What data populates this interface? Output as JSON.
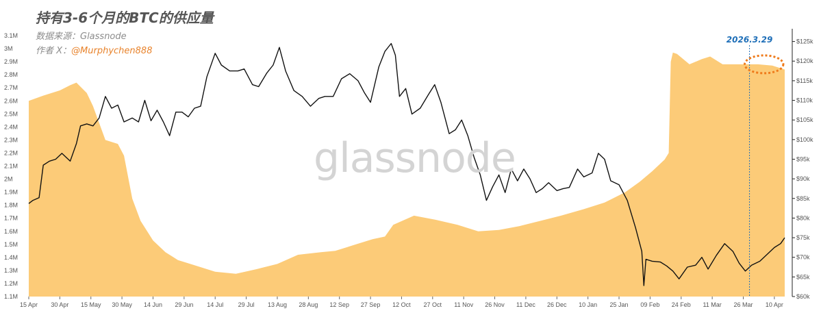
{
  "header": {
    "title": "持有3-6个月的BTC的供应量",
    "source": "数据来源：Glassnode",
    "author_prefix": "作者 X：",
    "author_handle": "@Murphychen888"
  },
  "watermark": "glassnode",
  "colors": {
    "supply_fill": "#fccb78",
    "price_line": "#111111",
    "annotation": "#1f6fb8",
    "highlight": "#ef7a1a"
  },
  "chart_data": {
    "type": "area",
    "x_start": "2025-04-15",
    "x_end": "2026-04-15",
    "x_tick_labels": [
      "15 Apr",
      "30 Apr",
      "15 May",
      "30 May",
      "14 Jun",
      "29 Jun",
      "14 Jul",
      "29 Jul",
      "13 Aug",
      "28 Aug",
      "12 Sep",
      "27 Sep",
      "12 Oct",
      "27 Oct",
      "11 Nov",
      "26 Nov",
      "11 Dec",
      "26 Dec",
      "10 Jan",
      "25 Jan",
      "09 Feb",
      "24 Feb",
      "11 Mar",
      "26 Mar",
      "10 Apr"
    ],
    "y_left_ticks": [
      "1.1M",
      "1.2M",
      "1.3M",
      "1.4M",
      "1.5M",
      "1.6M",
      "1.7M",
      "1.8M",
      "1.9M",
      "2M",
      "2.1M",
      "2.2M",
      "2.3M",
      "2.4M",
      "2.5M",
      "2.6M",
      "2.7M",
      "2.8M",
      "2.9M",
      "3M",
      "3.1M"
    ],
    "y_left_range": [
      1100000,
      3100000
    ],
    "y_right_ticks": [
      "$60k",
      "$65k",
      "$70k",
      "$75k",
      "$80k",
      "$85k",
      "$90k",
      "$95k",
      "$100k",
      "$105k",
      "$110k",
      "$115k",
      "$120k",
      "$125k"
    ],
    "y_right_range": [
      60000,
      126500
    ],
    "series": [
      {
        "type": "area",
        "axis": "left",
        "points": [
          [
            "2025-04-15",
            2600000
          ],
          [
            "2025-04-22",
            2640000
          ],
          [
            "2025-04-30",
            2680000
          ],
          [
            "2025-05-05",
            2720000
          ],
          [
            "2025-05-08",
            2740000
          ],
          [
            "2025-05-13",
            2660000
          ],
          [
            "2025-05-16",
            2560000
          ],
          [
            "2025-05-22",
            2300000
          ],
          [
            "2025-05-28",
            2270000
          ],
          [
            "2025-05-31",
            2180000
          ],
          [
            "2025-06-04",
            1850000
          ],
          [
            "2025-06-08",
            1680000
          ],
          [
            "2025-06-14",
            1530000
          ],
          [
            "2025-06-20",
            1440000
          ],
          [
            "2025-06-26",
            1380000
          ],
          [
            "2025-07-04",
            1340000
          ],
          [
            "2025-07-14",
            1290000
          ],
          [
            "2025-07-24",
            1275000
          ],
          [
            "2025-08-03",
            1310000
          ],
          [
            "2025-08-13",
            1350000
          ],
          [
            "2025-08-23",
            1420000
          ],
          [
            "2025-09-03",
            1440000
          ],
          [
            "2025-09-10",
            1450000
          ],
          [
            "2025-09-20",
            1500000
          ],
          [
            "2025-09-28",
            1540000
          ],
          [
            "2025-10-04",
            1560000
          ],
          [
            "2025-10-08",
            1650000
          ],
          [
            "2025-10-18",
            1720000
          ],
          [
            "2025-10-28",
            1690000
          ],
          [
            "2025-11-08",
            1650000
          ],
          [
            "2025-11-18",
            1600000
          ],
          [
            "2025-11-28",
            1610000
          ],
          [
            "2025-12-08",
            1640000
          ],
          [
            "2025-12-18",
            1680000
          ],
          [
            "2025-12-28",
            1720000
          ],
          [
            "2026-01-08",
            1770000
          ],
          [
            "2026-01-18",
            1820000
          ],
          [
            "2026-01-28",
            1900000
          ],
          [
            "2026-02-04",
            1980000
          ],
          [
            "2026-02-10",
            2060000
          ],
          [
            "2026-02-16",
            2150000
          ],
          [
            "2026-02-18",
            2200000
          ],
          [
            "2026-02-19",
            2900000
          ],
          [
            "2026-02-20",
            2970000
          ],
          [
            "2026-02-22",
            2960000
          ],
          [
            "2026-02-28",
            2880000
          ],
          [
            "2026-03-06",
            2920000
          ],
          [
            "2026-03-10",
            2940000
          ],
          [
            "2026-03-16",
            2880000
          ],
          [
            "2026-03-26",
            2880000
          ],
          [
            "2026-04-02",
            2880000
          ],
          [
            "2026-04-09",
            2870000
          ],
          [
            "2026-04-15",
            2840000
          ]
        ]
      },
      {
        "type": "line",
        "axis": "right",
        "points": [
          [
            "2025-04-15",
            83700
          ],
          [
            "2025-04-17",
            84500
          ],
          [
            "2025-04-20",
            85200
          ],
          [
            "2025-04-22",
            93500
          ],
          [
            "2025-04-25",
            94500
          ],
          [
            "2025-04-28",
            95000
          ],
          [
            "2025-05-01",
            96500
          ],
          [
            "2025-05-05",
            94500
          ],
          [
            "2025-05-08",
            99000
          ],
          [
            "2025-05-10",
            103500
          ],
          [
            "2025-05-13",
            104000
          ],
          [
            "2025-05-16",
            103500
          ],
          [
            "2025-05-19",
            105500
          ],
          [
            "2025-05-22",
            111000
          ],
          [
            "2025-05-25",
            108000
          ],
          [
            "2025-05-28",
            108800
          ],
          [
            "2025-05-31",
            104500
          ],
          [
            "2025-06-04",
            105500
          ],
          [
            "2025-06-07",
            104500
          ],
          [
            "2025-06-10",
            110000
          ],
          [
            "2025-06-13",
            104800
          ],
          [
            "2025-06-16",
            107500
          ],
          [
            "2025-06-19",
            104500
          ],
          [
            "2025-06-22",
            101000
          ],
          [
            "2025-06-25",
            107000
          ],
          [
            "2025-06-28",
            107000
          ],
          [
            "2025-07-01",
            105800
          ],
          [
            "2025-07-04",
            108000
          ],
          [
            "2025-07-07",
            108500
          ],
          [
            "2025-07-10",
            116000
          ],
          [
            "2025-07-14",
            122000
          ],
          [
            "2025-07-17",
            119000
          ],
          [
            "2025-07-21",
            117500
          ],
          [
            "2025-07-25",
            117500
          ],
          [
            "2025-07-28",
            118000
          ],
          [
            "2025-08-01",
            114000
          ],
          [
            "2025-08-04",
            113500
          ],
          [
            "2025-08-08",
            117000
          ],
          [
            "2025-08-11",
            119000
          ],
          [
            "2025-08-14",
            123500
          ],
          [
            "2025-08-17",
            117500
          ],
          [
            "2025-08-21",
            112500
          ],
          [
            "2025-08-25",
            111000
          ],
          [
            "2025-08-29",
            108500
          ],
          [
            "2025-09-02",
            110500
          ],
          [
            "2025-09-05",
            111000
          ],
          [
            "2025-09-09",
            111000
          ],
          [
            "2025-09-13",
            115500
          ],
          [
            "2025-09-17",
            116800
          ],
          [
            "2025-09-21",
            115000
          ],
          [
            "2025-09-24",
            112000
          ],
          [
            "2025-09-27",
            109500
          ],
          [
            "2025-10-01",
            118500
          ],
          [
            "2025-10-04",
            122500
          ],
          [
            "2025-10-07",
            124500
          ],
          [
            "2025-10-09",
            121500
          ],
          [
            "2025-10-11",
            111000
          ],
          [
            "2025-10-14",
            113000
          ],
          [
            "2025-10-17",
            106500
          ],
          [
            "2025-10-21",
            108000
          ],
          [
            "2025-10-25",
            111500
          ],
          [
            "2025-10-28",
            114000
          ],
          [
            "2025-10-31",
            109500
          ],
          [
            "2025-11-04",
            101500
          ],
          [
            "2025-11-07",
            102500
          ],
          [
            "2025-11-10",
            105000
          ],
          [
            "2025-11-13",
            101000
          ],
          [
            "2025-11-16",
            95500
          ],
          [
            "2025-11-19",
            91000
          ],
          [
            "2025-11-22",
            84500
          ],
          [
            "2025-11-25",
            88000
          ],
          [
            "2025-11-28",
            91000
          ],
          [
            "2025-12-01",
            86500
          ],
          [
            "2025-12-04",
            92500
          ],
          [
            "2025-12-07",
            89500
          ],
          [
            "2025-12-10",
            92500
          ],
          [
            "2025-12-13",
            90000
          ],
          [
            "2025-12-16",
            86500
          ],
          [
            "2025-12-19",
            87500
          ],
          [
            "2025-12-22",
            89000
          ],
          [
            "2025-12-26",
            87000
          ],
          [
            "2025-12-29",
            87500
          ],
          [
            "2026-01-01",
            87800
          ],
          [
            "2026-01-05",
            92500
          ],
          [
            "2026-01-08",
            90500
          ],
          [
            "2026-01-12",
            91500
          ],
          [
            "2026-01-15",
            96500
          ],
          [
            "2026-01-18",
            95000
          ],
          [
            "2026-01-21",
            89500
          ],
          [
            "2026-01-25",
            88500
          ],
          [
            "2026-01-29",
            84500
          ],
          [
            "2026-02-02",
            77500
          ],
          [
            "2026-02-05",
            71500
          ],
          [
            "2026-02-06",
            62800
          ],
          [
            "2026-02-07",
            69500
          ],
          [
            "2026-02-10",
            69000
          ],
          [
            "2026-02-14",
            68800
          ],
          [
            "2026-02-17",
            67800
          ],
          [
            "2026-02-20",
            66500
          ],
          [
            "2026-02-23",
            64500
          ],
          [
            "2026-02-27",
            67500
          ],
          [
            "2026-03-03",
            68000
          ],
          [
            "2026-03-06",
            70000
          ],
          [
            "2026-03-09",
            67000
          ],
          [
            "2026-03-13",
            70500
          ],
          [
            "2026-03-17",
            73500
          ],
          [
            "2026-03-21",
            71500
          ],
          [
            "2026-03-24",
            68500
          ],
          [
            "2026-03-27",
            66500
          ],
          [
            "2026-03-30",
            68000
          ],
          [
            "2026-04-03",
            69000
          ],
          [
            "2026-04-07",
            71000
          ],
          [
            "2026-04-10",
            72500
          ],
          [
            "2026-04-13",
            73500
          ],
          [
            "2026-04-15",
            75000
          ]
        ]
      }
    ],
    "annotations": [
      {
        "label": "2026.3.29",
        "date": "2026-03-29"
      },
      {
        "marker": "dotted-ellipse",
        "date_start": "2026-03-28",
        "date_end": "2026-04-13",
        "level": 2880000
      }
    ],
    "grid": false,
    "legend": "none"
  }
}
